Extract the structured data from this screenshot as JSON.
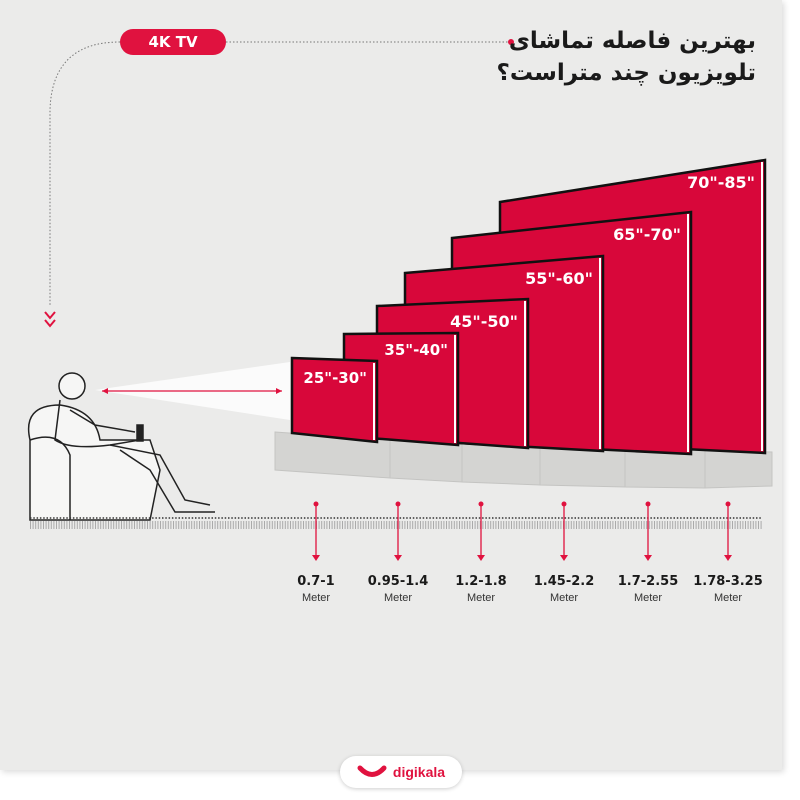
{
  "header": {
    "badge": "4K TV",
    "title_line1": "بهترین فاصله تماشای",
    "title_line2": "تلویزیون چند متراست؟"
  },
  "tvs": [
    {
      "size": "25\"-30\"",
      "distance": "0.7-1",
      "unit": "Meter"
    },
    {
      "size": "35\"-40\"",
      "distance": "0.95-1.4",
      "unit": "Meter"
    },
    {
      "size": "45\"-50\"",
      "distance": "1.2-1.8",
      "unit": "Meter"
    },
    {
      "size": "55\"-60\"",
      "distance": "1.45-2.2",
      "unit": "Meter"
    },
    {
      "size": "65\"-70\"",
      "distance": "1.7-2.55",
      "unit": "Meter"
    },
    {
      "size": "70\"-85\"",
      "distance": "1.78-3.25",
      "unit": "Meter"
    }
  ],
  "brand": {
    "name": "digikala",
    "color": "#e0123f"
  },
  "colors": {
    "accent": "#e0123f",
    "screen": "#d8073a",
    "background": "#ebebea"
  }
}
